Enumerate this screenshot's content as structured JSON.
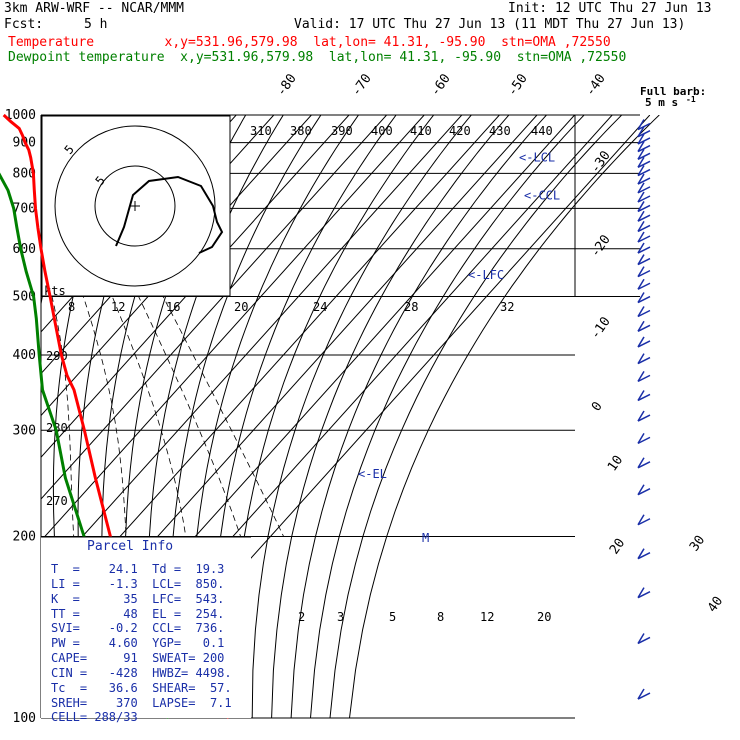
{
  "header": {
    "line1_left": "3km ARW-WRF -- NCAR/MMM",
    "line1_right": "Init: 12 UTC Thu 27 Jun 13",
    "fcst_label": "Fcst:",
    "fcst_value": "5 h",
    "valid": "Valid: 17 UTC Thu 27 Jun 13 (11 MDT Thu 27 Jun 13)",
    "temp_line": "Temperature         x,y=531.96,579.98  lat,lon= 41.31, -95.90  stn=OMA ,72550",
    "dew_line": "Dewpoint temperature  x,y=531.96,579.98  lat,lon= 41.31, -95.90  stn=OMA ,72550"
  },
  "colors": {
    "temperature": "#ff0000",
    "dewpoint": "#008000",
    "info": "#1a2fa8",
    "grid": "#000000"
  },
  "barb_legend": {
    "title": "Full barb:",
    "value": "5 m s",
    "unit_suffix": "-1"
  },
  "parcel_info": {
    "title": "Parcel Info",
    "rows": [
      "T  =    24.1  Td =  19.3",
      "LI =    -1.3  LCL=  850.",
      "K  =      35  LFC=  543.",
      "TT =      48  EL =  254.",
      "SVI=    -0.2  CCL=  736.",
      "PW =    4.60  YGP=   0.1",
      "CAPE=     91  SWEAT= 200",
      "CIN =   -428  HWBZ= 4498.",
      "Tc  =   36.6  SHEAR=  57.",
      "SREH=    370  LAPSE=  7.1",
      "CELL= 288/33"
    ]
  },
  "hodograph": {
    "units_label": "kts",
    "ring_labels": [
      "5",
      "5"
    ]
  },
  "chart_data": {
    "type": "line",
    "title": "",
    "ylabel": "",
    "y_scale": "log-pressure",
    "ylim": [
      1000,
      100
    ],
    "pressure_ticks": [
      100,
      200,
      300,
      400,
      500,
      600,
      700,
      800,
      900,
      1000
    ],
    "isotherm_labels": [
      "-80",
      "-70",
      "-60",
      "-50",
      "-40",
      "-30",
      "-20",
      "-10",
      "0",
      "10",
      "20",
      "30",
      "40"
    ],
    "theta_labels": [
      "310",
      "380",
      "390",
      "400",
      "410",
      "420",
      "430",
      "440"
    ],
    "dry_adiabat_labels": [
      "290",
      "280",
      "270"
    ],
    "mixing_ratio_labels": [
      "8",
      "12",
      "16",
      "20",
      "24",
      "28",
      "32",
      "2",
      "3",
      "5",
      "8",
      "12",
      "20"
    ],
    "levels": [
      {
        "label": "<-EL",
        "p": 254
      },
      {
        "label": "<-LFC",
        "p": 543
      },
      {
        "label": "<-CCL",
        "p": 736
      },
      {
        "label": "<-LCL",
        "p": 850
      }
    ],
    "series": [
      {
        "name": "Temperature",
        "color": "#ff0000",
        "points": [
          [
            1000,
            22.5
          ],
          [
            975,
            22.8
          ],
          [
            950,
            23.4
          ],
          [
            925,
            22.6
          ],
          [
            900,
            21.6
          ],
          [
            875,
            20.8
          ],
          [
            850,
            19.5
          ],
          [
            800,
            16.4
          ],
          [
            750,
            12.6
          ],
          [
            700,
            8.6
          ],
          [
            650,
            4.6
          ],
          [
            600,
            0.4
          ],
          [
            550,
            -4.0
          ],
          [
            500,
            -8.6
          ],
          [
            450,
            -13.8
          ],
          [
            400,
            -19.6
          ],
          [
            370,
            -23.0
          ],
          [
            350,
            -24.6
          ],
          [
            300,
            -31.5
          ],
          [
            250,
            -40.0
          ],
          [
            200,
            -50.0
          ],
          [
            170,
            -56.5
          ],
          [
            150,
            -61.0
          ],
          [
            140,
            -58.0
          ],
          [
            120,
            -57.5
          ],
          [
            100,
            -62.0
          ]
        ]
      },
      {
        "name": "Dewpoint temperature",
        "color": "#008000",
        "points": [
          [
            1000,
            18.6
          ],
          [
            975,
            17.5
          ],
          [
            950,
            16.4
          ],
          [
            925,
            15.6
          ],
          [
            900,
            14.0
          ],
          [
            875,
            11.5
          ],
          [
            850,
            8.6
          ],
          [
            820,
            7.5
          ],
          [
            800,
            7.2
          ],
          [
            750,
            5.6
          ],
          [
            700,
            2.8
          ],
          [
            650,
            -1.0
          ],
          [
            600,
            -5.0
          ],
          [
            550,
            -9.0
          ],
          [
            500,
            -13.0
          ],
          [
            460,
            -17.5
          ],
          [
            400,
            -25.5
          ],
          [
            350,
            -33.0
          ],
          [
            300,
            -39.0
          ],
          [
            250,
            -48.0
          ],
          [
            200,
            -57.0
          ],
          [
            170,
            -64.0
          ],
          [
            150,
            -70.0
          ],
          [
            140,
            -71.5
          ],
          [
            120,
            -75.0
          ],
          [
            100,
            -78.0
          ]
        ]
      }
    ]
  }
}
